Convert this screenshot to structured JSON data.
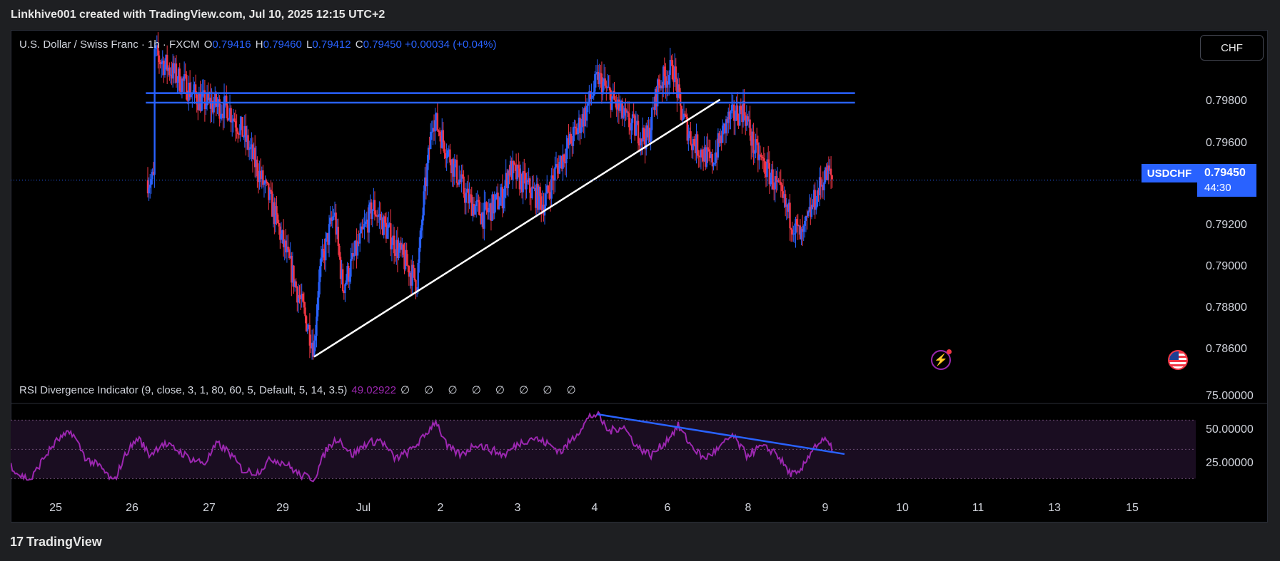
{
  "header": {
    "attribution": "Linkhive001 created with TradingView.com, Jul 10, 2025 12:15 UTC+2"
  },
  "legend": {
    "symbol": "U.S. Dollar / Swiss Franc · 1h · FXCM",
    "open_label": "O",
    "open": "0.79416",
    "high_label": "H",
    "high": "0.79460",
    "low_label": "L",
    "low": "0.79412",
    "close_label": "C",
    "close": "0.79450",
    "change": "+0.00034 (+0.04%)"
  },
  "currency_button": "CHF",
  "last_price": {
    "symbol": "USDCHF",
    "value": "0.79450",
    "countdown": "44:30"
  },
  "rsi_legend": {
    "name": "RSI Divergence Indicator (9, close, 3, 1, 80, 60, 5, Default, 5, 14, 3.5)",
    "value": "49.02922",
    "placeholders": "∅ ∅ ∅ ∅ ∅ ∅ ∅ ∅"
  },
  "footer": {
    "logo_text": "TradingView",
    "logo_mark": "17"
  },
  "icons": {
    "alert": "lightning-icon",
    "flag": "us-flag-icon"
  },
  "colors": {
    "up": "#2962ff",
    "down": "#f23645",
    "rsi": "#9c27b0",
    "trendline": "#ffffff",
    "resistance": "#2962ff"
  },
  "chart_data": [
    {
      "type": "candlestick",
      "title": "U.S. Dollar / Swiss Franc · 1h · FXCM",
      "y_ticks": [
        "0.79800",
        "0.79600",
        "0.79200",
        "0.79000",
        "0.78800",
        "0.78600"
      ],
      "y_tick_values": [
        0.798,
        0.796,
        0.792,
        0.79,
        0.788,
        0.786
      ],
      "ylim": [
        0.7852,
        0.8005
      ],
      "x_ticks": [
        "25",
        "26",
        "27",
        "29",
        "Jul",
        "2",
        "3",
        "4",
        "6",
        "8",
        "9",
        "10",
        "11",
        "13",
        "15"
      ],
      "last_price": 0.7945,
      "key_path": [
        [
          0.7,
          0.7998
        ],
        [
          5.6,
          0.7978
        ],
        [
          8.5,
          0.7975
        ],
        [
          10.0,
          0.7965
        ],
        [
          13.0,
          0.7935
        ],
        [
          17.5,
          0.7875
        ],
        [
          18.0,
          0.7905
        ],
        [
          19.6,
          0.7932
        ],
        [
          20.5,
          0.79
        ],
        [
          23.7,
          0.7934
        ],
        [
          26.3,
          0.7916
        ],
        [
          28.3,
          0.7902
        ],
        [
          29.0,
          0.7935
        ],
        [
          30.0,
          0.7972
        ],
        [
          33.5,
          0.7938
        ],
        [
          35.3,
          0.793
        ],
        [
          37.3,
          0.7938
        ],
        [
          38.0,
          0.795
        ],
        [
          41.7,
          0.7935
        ],
        [
          43.0,
          0.795
        ],
        [
          45.0,
          0.7965
        ],
        [
          46.0,
          0.7973
        ],
        [
          47.4,
          0.7988
        ],
        [
          50.3,
          0.797
        ],
        [
          52.6,
          0.7962
        ],
        [
          53.7,
          0.7985
        ],
        [
          55.3,
          0.7992
        ],
        [
          56.0,
          0.7975
        ],
        [
          57.2,
          0.7962
        ],
        [
          59.3,
          0.7952
        ],
        [
          61.0,
          0.797
        ],
        [
          62.7,
          0.7975
        ],
        [
          63.8,
          0.7958
        ],
        [
          65.8,
          0.7945
        ],
        [
          67.5,
          0.793
        ],
        [
          68.8,
          0.792
        ],
        [
          70.0,
          0.7935
        ],
        [
          71.0,
          0.7945
        ],
        [
          71.6,
          0.7948
        ],
        [
          72.1,
          0.7945
        ]
      ],
      "resistance_levels": [
        0.79815,
        0.79775
      ],
      "resistance_span": [
        0.7,
        56.0
      ],
      "trendline": {
        "from": [
          17.5,
          0.7871
        ],
        "to": [
          60.2,
          0.79788
        ]
      }
    },
    {
      "type": "line",
      "title": "RSI Divergence Indicator (9, close, 3, 1, 80, 60, 5, Default, 5, 14, 3.5)",
      "y_ticks": [
        "75.00000",
        "50.00000",
        "25.00000"
      ],
      "y_tick_values": [
        75,
        50,
        25
      ],
      "ylim": [
        10,
        88
      ],
      "band": [
        75,
        25
      ],
      "current_value": 49.02922,
      "key_path": [
        [
          -15.0,
          42
        ],
        [
          -13.5,
          28
        ],
        [
          -12.3,
          24
        ],
        [
          -11.0,
          42
        ],
        [
          -9.5,
          58
        ],
        [
          -8.0,
          65
        ],
        [
          -6.5,
          42
        ],
        [
          -5.0,
          35
        ],
        [
          -3.6,
          22
        ],
        [
          -2.2,
          48
        ],
        [
          -1.0,
          60
        ],
        [
          0.2,
          45
        ],
        [
          1.5,
          55
        ],
        [
          3.0,
          50
        ],
        [
          4.5,
          42
        ],
        [
          6.0,
          38
        ],
        [
          7.3,
          55
        ],
        [
          8.5,
          48
        ],
        [
          10.0,
          32
        ],
        [
          11.5,
          30
        ],
        [
          13.0,
          42
        ],
        [
          14.5,
          38
        ],
        [
          16.0,
          28
        ],
        [
          17.5,
          25
        ],
        [
          18.8,
          50
        ],
        [
          20.0,
          60
        ],
        [
          21.5,
          45
        ],
        [
          23.0,
          55
        ],
        [
          24.5,
          58
        ],
        [
          26.0,
          42
        ],
        [
          27.5,
          48
        ],
        [
          29.0,
          60
        ],
        [
          30.3,
          75
        ],
        [
          31.5,
          52
        ],
        [
          33.0,
          45
        ],
        [
          34.5,
          55
        ],
        [
          36.0,
          50
        ],
        [
          37.5,
          45
        ],
        [
          39.0,
          55
        ],
        [
          40.5,
          60
        ],
        [
          42.0,
          55
        ],
        [
          43.5,
          48
        ],
        [
          45.0,
          62
        ],
        [
          46.5,
          78
        ],
        [
          47.3,
          80
        ],
        [
          48.5,
          65
        ],
        [
          50.0,
          70
        ],
        [
          51.5,
          52
        ],
        [
          53.0,
          45
        ],
        [
          54.3,
          55
        ],
        [
          55.8,
          70
        ],
        [
          57.0,
          55
        ],
        [
          58.5,
          42
        ],
        [
          60.0,
          50
        ],
        [
          61.5,
          62
        ],
        [
          63.0,
          45
        ],
        [
          64.5,
          52
        ],
        [
          66.0,
          48
        ],
        [
          67.5,
          30
        ],
        [
          68.5,
          28
        ],
        [
          70.0,
          52
        ],
        [
          71.2,
          58
        ],
        [
          72.1,
          49
        ]
      ],
      "divergence_line": {
        "from": [
          47.3,
          80
        ],
        "to": [
          73.3,
          46
        ]
      }
    }
  ]
}
